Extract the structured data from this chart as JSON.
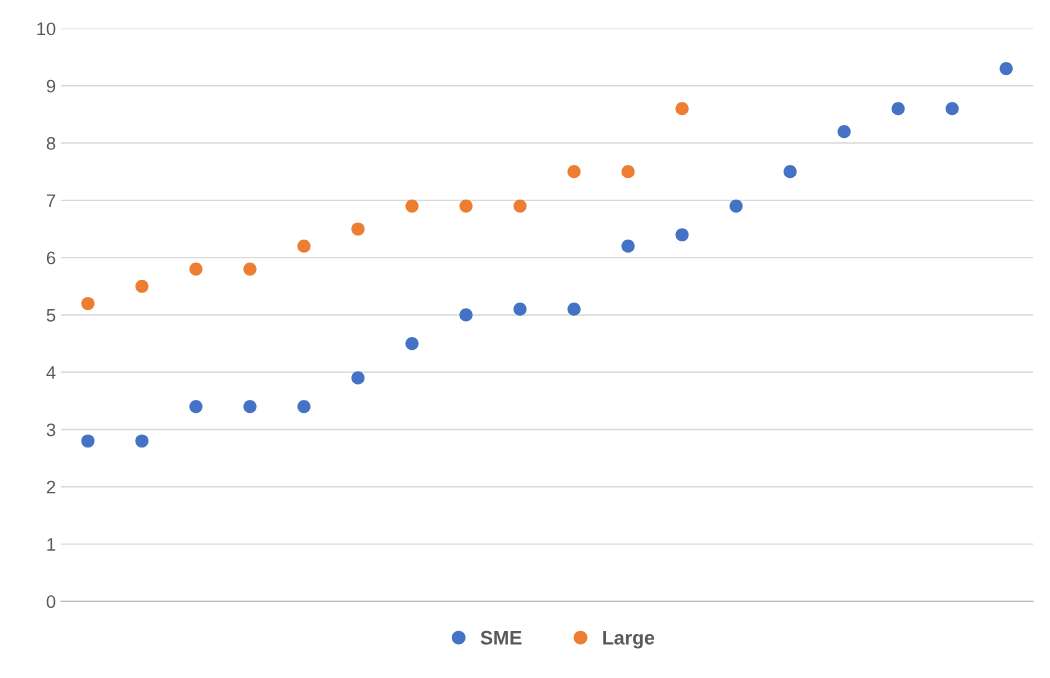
{
  "chart_data": {
    "type": "scatter",
    "categories": [
      null,
      null,
      null,
      null,
      null,
      null,
      null,
      null,
      null,
      null,
      null,
      null,
      null,
      null,
      null,
      null,
      null,
      null
    ],
    "series": [
      {
        "name": "SME",
        "color": "#4472c4",
        "values": [
          2.8,
          2.8,
          3.4,
          3.4,
          3.4,
          3.9,
          4.5,
          5.0,
          5.1,
          5.1,
          6.2,
          6.4,
          6.9,
          7.5,
          8.2,
          8.6,
          8.6,
          9.3
        ]
      },
      {
        "name": "Large",
        "color": "#ed7d31",
        "values": [
          5.2,
          5.5,
          5.8,
          5.8,
          6.2,
          6.5,
          6.9,
          6.9,
          6.9,
          7.5,
          7.5,
          8.6,
          null,
          null,
          null,
          null,
          null,
          null
        ]
      }
    ],
    "ylim": [
      0,
      10
    ],
    "yticks": [
      0,
      1,
      2,
      3,
      4,
      5,
      6,
      7,
      8,
      9,
      10
    ],
    "tick_labels": "y",
    "grid": "y",
    "legend": "bottom",
    "marker": "circle"
  }
}
